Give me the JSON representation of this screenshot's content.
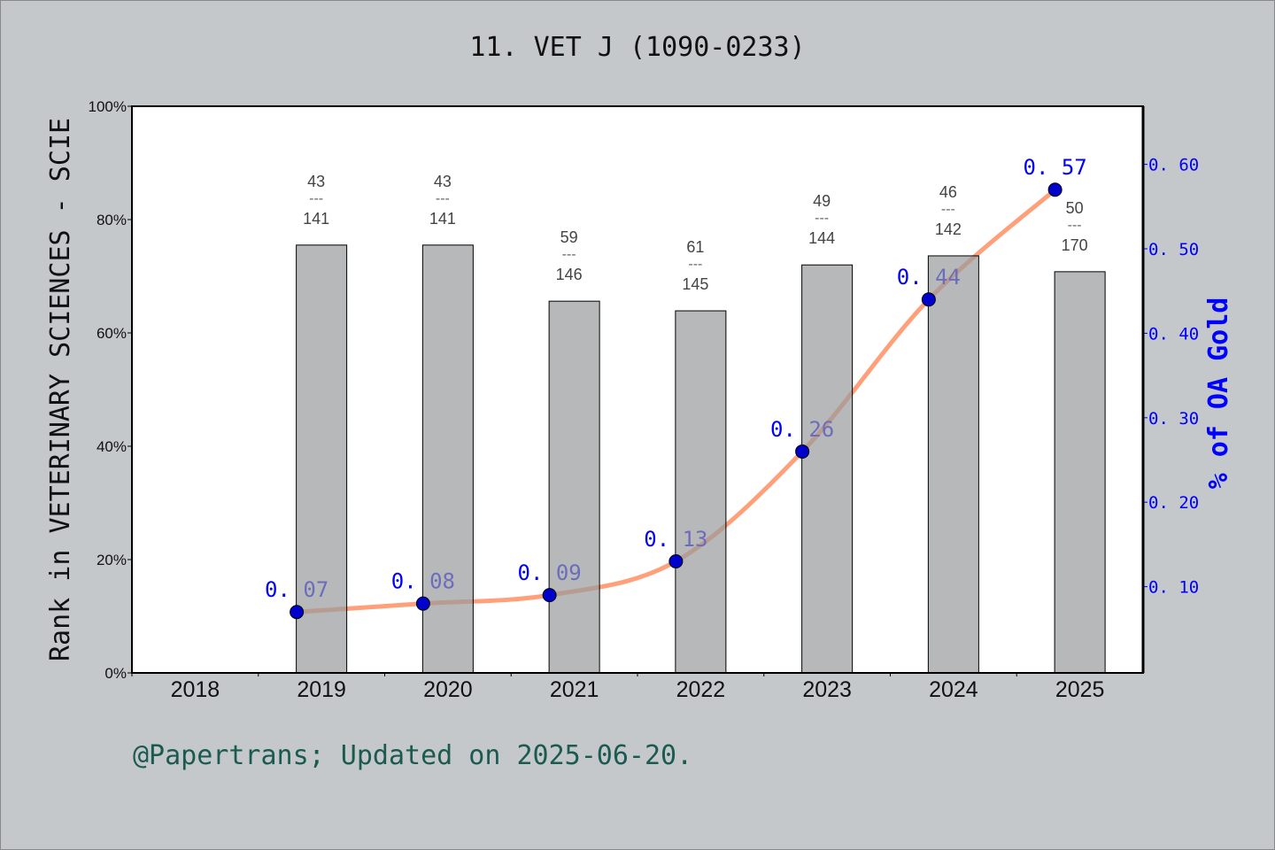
{
  "chart_data": {
    "type": "bar+line",
    "title": "11. VET J (1090-0233)",
    "categories": [
      "2018",
      "2019",
      "2020",
      "2021",
      "2022",
      "2023",
      "2024",
      "2025"
    ],
    "bar_series": {
      "ylabel": "Rank in VETERINARY SCIENCES - SCIE",
      "ylim": [
        0,
        100
      ],
      "yticks": [
        "0%",
        "20%",
        "40%",
        "60%",
        "80%",
        "100%"
      ],
      "values": [
        null,
        75.5,
        75.5,
        65.6,
        63.9,
        72.0,
        73.6,
        70.8
      ],
      "rank_labels": [
        null,
        {
          "rank": "43",
          "total": "141"
        },
        {
          "rank": "43",
          "total": "141"
        },
        {
          "rank": "59",
          "total": "146"
        },
        {
          "rank": "61",
          "total": "145"
        },
        {
          "rank": "49",
          "total": "144"
        },
        {
          "rank": "46",
          "total": "142"
        },
        {
          "rank": "50",
          "total": "170"
        }
      ],
      "color": "#b8b9bb"
    },
    "line_series": {
      "ylabel": "% of OA Gold",
      "ylim": [
        0,
        0.67
      ],
      "yticks": [
        "0.10",
        "0.20",
        "0.30",
        "0.40",
        "0.50",
        "0.60"
      ],
      "values": [
        null,
        0.07,
        0.08,
        0.09,
        0.13,
        0.26,
        0.44,
        0.57
      ],
      "labels": [
        null,
        "0.07",
        "0.08",
        "0.09",
        "0.13",
        "0.26",
        "0.44",
        "0.57"
      ],
      "line_color": "#ffa07a",
      "point_color": "#0000cc",
      "axis_color": "#0000ff"
    },
    "grid": false
  },
  "footer": "@Papertrans; Updated on 2025-06-20."
}
